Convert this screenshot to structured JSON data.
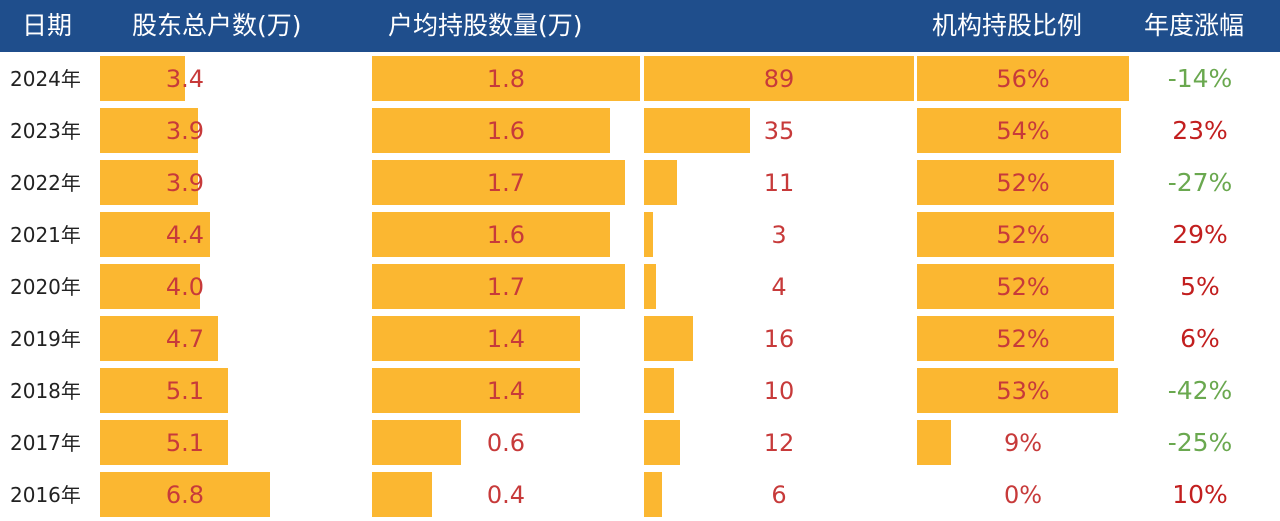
{
  "header": {
    "date": "日期",
    "holders": "股东总户数(万)",
    "avg": "户均持股数量(万)",
    "col3": "",
    "inst": "机构持股比例",
    "change": "年度涨幅"
  },
  "colors": {
    "header_bg": "#1f4e8c",
    "bar": "#fbb731",
    "value_text": "#c73a3a",
    "up": "#c21f1f",
    "down": "#6aa84f"
  },
  "chart_data": {
    "type": "table",
    "columns": [
      "日期",
      "股东总户数(万)",
      "户均持股数量(万)",
      "",
      "机构持股比例",
      "年度涨幅"
    ],
    "rows": [
      {
        "date": "2024年",
        "holders": 3.4,
        "holders_label": "3.4",
        "avg": 1.8,
        "avg_label": "1.8",
        "col3": 89,
        "col3_label": "89",
        "inst": 56,
        "inst_label": "56%",
        "change": -14,
        "change_label": "-14%"
      },
      {
        "date": "2023年",
        "holders": 3.9,
        "holders_label": "3.9",
        "avg": 1.6,
        "avg_label": "1.6",
        "col3": 35,
        "col3_label": "35",
        "inst": 54,
        "inst_label": "54%",
        "change": 23,
        "change_label": "23%"
      },
      {
        "date": "2022年",
        "holders": 3.9,
        "holders_label": "3.9",
        "avg": 1.7,
        "avg_label": "1.7",
        "col3": 11,
        "col3_label": "11",
        "inst": 52,
        "inst_label": "52%",
        "change": -27,
        "change_label": "-27%"
      },
      {
        "date": "2021年",
        "holders": 4.4,
        "holders_label": "4.4",
        "avg": 1.6,
        "avg_label": "1.6",
        "col3": 3,
        "col3_label": "3",
        "inst": 52,
        "inst_label": "52%",
        "change": 29,
        "change_label": "29%"
      },
      {
        "date": "2020年",
        "holders": 4.0,
        "holders_label": "4.0",
        "avg": 1.7,
        "avg_label": "1.7",
        "col3": 4,
        "col3_label": "4",
        "inst": 52,
        "inst_label": "52%",
        "change": 5,
        "change_label": "5%"
      },
      {
        "date": "2019年",
        "holders": 4.7,
        "holders_label": "4.7",
        "avg": 1.4,
        "avg_label": "1.4",
        "col3": 16,
        "col3_label": "16",
        "inst": 52,
        "inst_label": "52%",
        "change": 6,
        "change_label": "6%"
      },
      {
        "date": "2018年",
        "holders": 5.1,
        "holders_label": "5.1",
        "avg": 1.4,
        "avg_label": "1.4",
        "col3": 10,
        "col3_label": "10",
        "inst": 53,
        "inst_label": "53%",
        "change": -42,
        "change_label": "-42%"
      },
      {
        "date": "2017年",
        "holders": 5.1,
        "holders_label": "5.1",
        "avg": 0.6,
        "avg_label": "0.6",
        "col3": 12,
        "col3_label": "12",
        "inst": 9,
        "inst_label": "9%",
        "change": -25,
        "change_label": "-25%"
      },
      {
        "date": "2016年",
        "holders": 6.8,
        "holders_label": "6.8",
        "avg": 0.4,
        "avg_label": "0.4",
        "col3": 6,
        "col3_label": "6",
        "inst": 0,
        "inst_label": "0%",
        "change": 10,
        "change_label": "10%"
      }
    ],
    "scales": {
      "holders": [
        0,
        6.8
      ],
      "avg": [
        0,
        1.8
      ],
      "col3": [
        0,
        89
      ],
      "inst": [
        0,
        56
      ]
    }
  }
}
